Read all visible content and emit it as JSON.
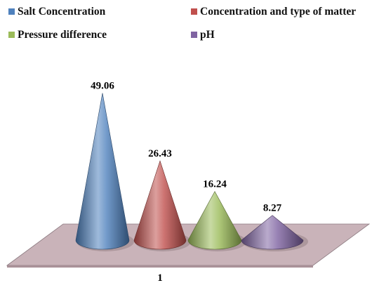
{
  "chart_data": {
    "type": "bar",
    "categories": [
      "1"
    ],
    "series": [
      {
        "name": "Salt Concentration",
        "values": [
          49.06
        ]
      },
      {
        "name": "Concentration and type of matter",
        "values": [
          26.43
        ]
      },
      {
        "name": "Pressure difference",
        "values": [
          16.24
        ]
      },
      {
        "name": "pH",
        "values": [
          8.27
        ]
      }
    ],
    "data_labels": [
      "49.06",
      "26.43",
      "16.24",
      "8.27"
    ],
    "colors": [
      "#4f81bd",
      "#c0504d",
      "#9bbb59",
      "#8064a2"
    ],
    "ylim": [
      0,
      55
    ],
    "grid": false,
    "legend_position": "top",
    "mark_shape": "cone-3d",
    "floor_color": "#c9b3b9"
  }
}
